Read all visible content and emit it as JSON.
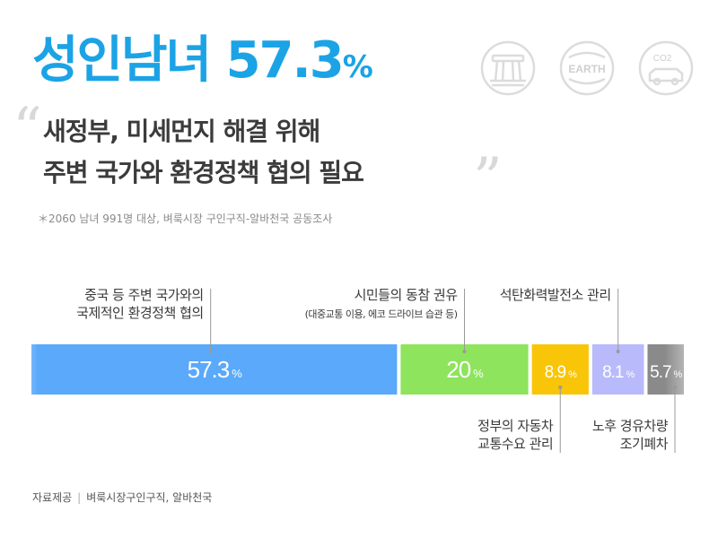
{
  "headline": {
    "text": "성인남녀 57.3",
    "unit": "%"
  },
  "subtitle": {
    "line1": "새정부, 미세먼지 해결 위해",
    "line2": "주변 국가와 환경정책 협의 필요"
  },
  "footnote": "＊2060 남녀 991명 대상, 벼룩시장 구인구직-알바천국 공동조사",
  "icons": [
    "rail-line-icon",
    "earth-icon",
    "co2-car-icon"
  ],
  "icon_text": {
    "earth": "EARTH",
    "co2": "CO2"
  },
  "colors": {
    "accent": "#1ca3e6",
    "quote": "#d8d8d8"
  },
  "chart_data": {
    "type": "bar",
    "orientation": "horizontal-stacked",
    "unit": "%",
    "xlim": [
      0,
      100
    ],
    "categories": [
      {
        "label": "중국 등 주변 국가와의 국제적인 환경정책 협의",
        "lines": [
          "중국 등 주변 국가와의",
          "국제적인 환경정책 협의"
        ],
        "sub": "",
        "value": 57.3,
        "color": "#5aa9fb",
        "label_pos": "top"
      },
      {
        "label": "시민들의 동참 권유",
        "lines": [
          "시민들의 동참 권유"
        ],
        "sub": "(대중교통 이용, 에코 드라이브 습관 등)",
        "value": 20,
        "color": "#8ee45c",
        "label_pos": "top"
      },
      {
        "label": "정부의 자동차 교통수요 관리",
        "lines": [
          "정부의 자동차",
          "교통수요 관리"
        ],
        "sub": "",
        "value": 8.9,
        "color": "#f9c509",
        "label_pos": "bottom"
      },
      {
        "label": "석탄화력발전소 관리",
        "lines": [
          "석탄화력발전소 관리"
        ],
        "sub": "",
        "value": 8.1,
        "color": "#b9bafb",
        "label_pos": "top"
      },
      {
        "label": "노후 경유차량 조기폐차",
        "lines": [
          "노후 경유차량",
          "조기폐차"
        ],
        "sub": "",
        "value": 5.7,
        "color": "#8a8a8a",
        "label_pos": "bottom"
      }
    ],
    "value_labels": [
      "57.3",
      "20",
      "8.9",
      "8.1",
      "5.7"
    ]
  },
  "source": {
    "label": "자료제공",
    "text": "벼룩시장구인구직, 알바천국"
  }
}
